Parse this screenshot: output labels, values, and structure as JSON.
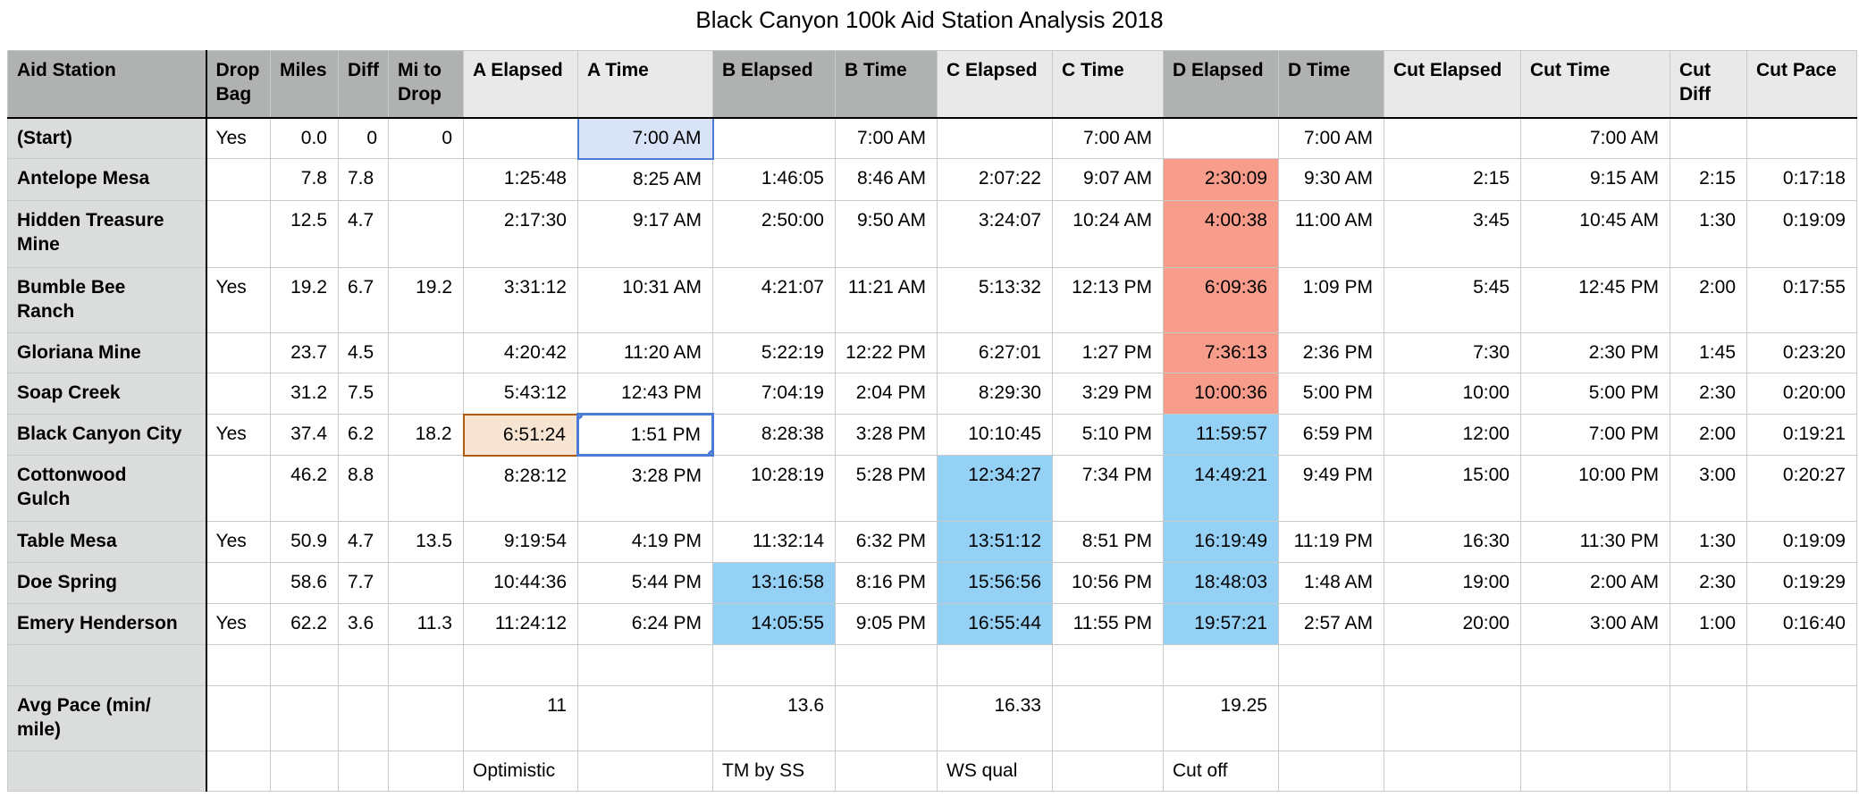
{
  "title": "Black Canyon 100k Aid Station Analysis 2018",
  "colors": {
    "header_dark": "#b0b2b2",
    "header_light": "#e9e9e9",
    "label_column": "#dbdcdc",
    "grid_line": "#c8caca",
    "highlight_red": "#f89c8b",
    "highlight_blue": "#95d0f5",
    "selection_blue_border": "#4a7cd6",
    "selection_blue_fill": "#d9e3f8",
    "selection_orange_border": "#ae5a0f",
    "selection_orange_fill": "#f8e4d2"
  },
  "table": {
    "columns": [
      {
        "key": "aid_station",
        "label": "Aid Station"
      },
      {
        "key": "drop_bag",
        "label": "Drop Bag"
      },
      {
        "key": "miles",
        "label": "Miles"
      },
      {
        "key": "diff",
        "label": "Diff"
      },
      {
        "key": "mi_to_drop",
        "label": "Mi to Drop"
      },
      {
        "key": "a_elapsed",
        "label": "A Elapsed"
      },
      {
        "key": "a_time",
        "label": "A Time"
      },
      {
        "key": "b_elapsed",
        "label": "B Elapsed"
      },
      {
        "key": "b_time",
        "label": "B Time"
      },
      {
        "key": "c_elapsed",
        "label": "C Elapsed"
      },
      {
        "key": "c_time",
        "label": "C Time"
      },
      {
        "key": "d_elapsed",
        "label": "D Elapsed"
      },
      {
        "key": "d_time",
        "label": "D Time"
      },
      {
        "key": "cut_elapsed",
        "label": "Cut Elapsed"
      },
      {
        "key": "cut_time",
        "label": "Cut Time"
      },
      {
        "key": "cut_diff",
        "label": "Cut Diff"
      },
      {
        "key": "cut_pace",
        "label": "Cut Pace"
      }
    ],
    "rows": [
      {
        "key": "start",
        "label": "(Start)",
        "cells": {
          "drop_bag": "Yes",
          "miles": "0.0",
          "diff": "0",
          "mi_to_drop": "0",
          "a_time": "7:00 AM",
          "b_time": "7:00 AM",
          "c_time": "7:00 AM",
          "d_time": "7:00 AM",
          "cut_time": "7:00 AM"
        },
        "highlights": {
          "a_time": "sel-blue-fill"
        }
      },
      {
        "key": "antelope-mesa",
        "label": "Antelope Mesa",
        "cells": {
          "miles": "7.8",
          "diff": "7.8",
          "a_elapsed": "1:25:48",
          "a_time": "8:25 AM",
          "b_elapsed": "1:46:05",
          "b_time": "8:46 AM",
          "c_elapsed": "2:07:22",
          "c_time": "9:07 AM",
          "d_elapsed": "2:30:09",
          "d_time": "9:30 AM",
          "cut_elapsed": "2:15",
          "cut_time": "9:15 AM",
          "cut_diff": "2:15",
          "cut_pace": "0:17:18"
        },
        "highlights": {
          "d_elapsed": "red"
        }
      },
      {
        "key": "hidden-treasure-mine",
        "label": "Hidden Treasure\nMine",
        "cells": {
          "miles": "12.5",
          "diff": "4.7",
          "a_elapsed": "2:17:30",
          "a_time": "9:17 AM",
          "b_elapsed": "2:50:00",
          "b_time": "9:50 AM",
          "c_elapsed": "3:24:07",
          "c_time": "10:24 AM",
          "d_elapsed": "4:00:38",
          "d_time": "11:00 AM",
          "cut_elapsed": "3:45",
          "cut_time": "10:45 AM",
          "cut_diff": "1:30",
          "cut_pace": "0:19:09"
        },
        "highlights": {
          "d_elapsed": "red"
        }
      },
      {
        "key": "bumble-bee-ranch",
        "label": "Bumble Bee\nRanch",
        "cells": {
          "drop_bag": "Yes",
          "miles": "19.2",
          "diff": "6.7",
          "mi_to_drop": "19.2",
          "a_elapsed": "3:31:12",
          "a_time": "10:31 AM",
          "b_elapsed": "4:21:07",
          "b_time": "11:21 AM",
          "c_elapsed": "5:13:32",
          "c_time": "12:13 PM",
          "d_elapsed": "6:09:36",
          "d_time": "1:09 PM",
          "cut_elapsed": "5:45",
          "cut_time": "12:45 PM",
          "cut_diff": "2:00",
          "cut_pace": "0:17:55"
        },
        "highlights": {
          "d_elapsed": "red"
        }
      },
      {
        "key": "gloriana-mine",
        "label": "Gloriana Mine",
        "cells": {
          "miles": "23.7",
          "diff": "4.5",
          "a_elapsed": "4:20:42",
          "a_time": "11:20 AM",
          "b_elapsed": "5:22:19",
          "b_time": "12:22 PM",
          "c_elapsed": "6:27:01",
          "c_time": "1:27 PM",
          "d_elapsed": "7:36:13",
          "d_time": "2:36 PM",
          "cut_elapsed": "7:30",
          "cut_time": "2:30 PM",
          "cut_diff": "1:45",
          "cut_pace": "0:23:20"
        },
        "highlights": {
          "d_elapsed": "red"
        }
      },
      {
        "key": "soap-creek",
        "label": "Soap Creek",
        "cells": {
          "miles": "31.2",
          "diff": "7.5",
          "a_elapsed": "5:43:12",
          "a_time": "12:43 PM",
          "b_elapsed": "7:04:19",
          "b_time": "2:04 PM",
          "c_elapsed": "8:29:30",
          "c_time": "3:29 PM",
          "d_elapsed": "10:00:36",
          "d_time": "5:00 PM",
          "cut_elapsed": "10:00",
          "cut_time": "5:00 PM",
          "cut_diff": "2:30",
          "cut_pace": "0:20:00"
        },
        "highlights": {
          "d_elapsed": "red"
        }
      },
      {
        "key": "black-canyon-city",
        "label": "Black Canyon City",
        "cells": {
          "drop_bag": "Yes",
          "miles": "37.4",
          "diff": "6.2",
          "mi_to_drop": "18.2",
          "a_elapsed": "6:51:24",
          "a_time": "1:51 PM",
          "b_elapsed": "8:28:38",
          "b_time": "3:28 PM",
          "c_elapsed": "10:10:45",
          "c_time": "5:10 PM",
          "d_elapsed": "11:59:57",
          "d_time": "6:59 PM",
          "cut_elapsed": "12:00",
          "cut_time": "7:00 PM",
          "cut_diff": "2:00",
          "cut_pace": "0:19:21"
        },
        "highlights": {
          "a_elapsed": "sel-orange",
          "a_time": "sel-blue-handles",
          "d_elapsed": "blue"
        }
      },
      {
        "key": "cottonwood-gulch",
        "label": "Cottonwood\nGulch",
        "cells": {
          "miles": "46.2",
          "diff": "8.8",
          "a_elapsed": "8:28:12",
          "a_time": "3:28 PM",
          "b_elapsed": "10:28:19",
          "b_time": "5:28 PM",
          "c_elapsed": "12:34:27",
          "c_time": "7:34 PM",
          "d_elapsed": "14:49:21",
          "d_time": "9:49 PM",
          "cut_elapsed": "15:00",
          "cut_time": "10:00 PM",
          "cut_diff": "3:00",
          "cut_pace": "0:20:27"
        },
        "highlights": {
          "c_elapsed": "blue",
          "d_elapsed": "blue"
        }
      },
      {
        "key": "table-mesa",
        "label": "Table Mesa",
        "cells": {
          "drop_bag": "Yes",
          "miles": "50.9",
          "diff": "4.7",
          "mi_to_drop": "13.5",
          "a_elapsed": "9:19:54",
          "a_time": "4:19 PM",
          "b_elapsed": "11:32:14",
          "b_time": "6:32 PM",
          "c_elapsed": "13:51:12",
          "c_time": "8:51 PM",
          "d_elapsed": "16:19:49",
          "d_time": "11:19 PM",
          "cut_elapsed": "16:30",
          "cut_time": "11:30 PM",
          "cut_diff": "1:30",
          "cut_pace": "0:19:09"
        },
        "highlights": {
          "c_elapsed": "blue",
          "d_elapsed": "blue"
        }
      },
      {
        "key": "doe-spring",
        "label": "Doe Spring",
        "cells": {
          "miles": "58.6",
          "diff": "7.7",
          "a_elapsed": "10:44:36",
          "a_time": "5:44 PM",
          "b_elapsed": "13:16:58",
          "b_time": "8:16 PM",
          "c_elapsed": "15:56:56",
          "c_time": "10:56 PM",
          "d_elapsed": "18:48:03",
          "d_time": "1:48 AM",
          "cut_elapsed": "19:00",
          "cut_time": "2:00 AM",
          "cut_diff": "2:30",
          "cut_pace": "0:19:29"
        },
        "highlights": {
          "b_elapsed": "blue",
          "c_elapsed": "blue",
          "d_elapsed": "blue"
        }
      },
      {
        "key": "emery-henderson",
        "label": "Emery Henderson",
        "cells": {
          "drop_bag": "Yes",
          "miles": "62.2",
          "diff": "3.6",
          "mi_to_drop": "11.3",
          "a_elapsed": "11:24:12",
          "a_time": "6:24 PM",
          "b_elapsed": "14:05:55",
          "b_time": "9:05 PM",
          "c_elapsed": "16:55:44",
          "c_time": "11:55 PM",
          "d_elapsed": "19:57:21",
          "d_time": "2:57 AM",
          "cut_elapsed": "20:00",
          "cut_time": "3:00 AM",
          "cut_diff": "1:00",
          "cut_pace": "0:16:40"
        },
        "highlights": {
          "b_elapsed": "blue",
          "c_elapsed": "blue",
          "d_elapsed": "blue"
        }
      },
      {
        "key": "blank",
        "label": "",
        "cells": {}
      },
      {
        "key": "avg-pace",
        "label": "Avg Pace (min/\nmile)",
        "cells": {
          "a_elapsed": "11",
          "b_elapsed": "13.6",
          "c_elapsed": "16.33",
          "d_elapsed": "19.25"
        }
      },
      {
        "key": "notes",
        "label": "",
        "cells": {
          "a_elapsed": "Optimistic",
          "b_elapsed": "TM by SS",
          "c_elapsed": "WS qual",
          "d_elapsed": "Cut off"
        }
      }
    ]
  }
}
